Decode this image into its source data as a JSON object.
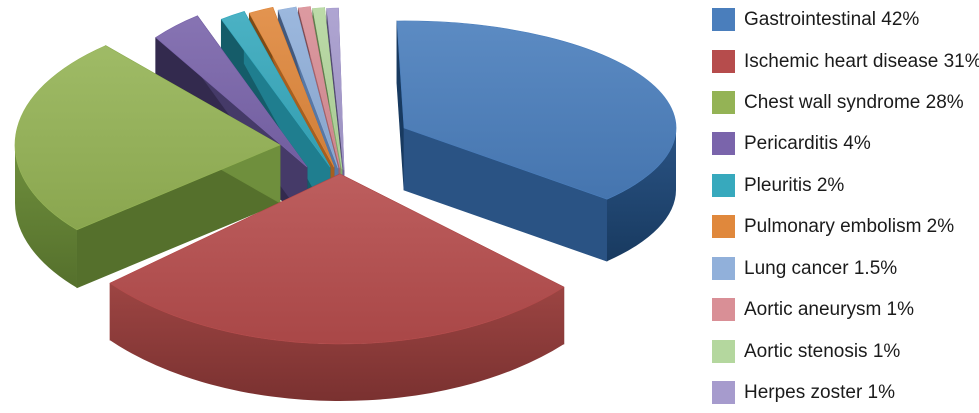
{
  "chart_data": {
    "type": "pie",
    "style": "3d-exploded",
    "title": "",
    "unit": "%",
    "legend_position": "right",
    "background": "#ffffff",
    "legend_text_color": "#1b1b1b",
    "slices": [
      {
        "label": "Gastrointestinal",
        "value": 42,
        "legend": "Gastrointestinal 42%",
        "color": "#4a7ebc",
        "wall": "#2a5384",
        "wall_dark": "#183a60"
      },
      {
        "label": "Ischemic heart disease",
        "value": 31,
        "legend": "Ischemic heart disease 31%",
        "color": "#b64c4c",
        "wall": "#9d4543",
        "wall_dark": "#7a3130"
      },
      {
        "label": "Chest wall syndrome",
        "value": 28,
        "legend": "Chest wall syndrome 28%",
        "color": "#94b355",
        "wall": "#6f8f3d",
        "wall_dark": "#55702c"
      },
      {
        "label": "Pericarditis",
        "value": 4,
        "legend": "Pericarditis 4%",
        "color": "#7a64ab",
        "wall": "#453a68",
        "wall_dark": "#332a4e"
      },
      {
        "label": "Pleuritis",
        "value": 2,
        "legend": "Pleuritis 2%",
        "color": "#37a9bd",
        "wall": "#1f7e8f",
        "wall_dark": "#155c69"
      },
      {
        "label": "Pulmonary embolism",
        "value": 2,
        "legend": "Pulmonary embolism 2%",
        "color": "#e0883c",
        "wall": "#a65f20",
        "wall_dark": "#7d4a16"
      },
      {
        "label": "Lung cancer",
        "value": 1.5,
        "legend": "Lung cancer 1.5%",
        "color": "#91b0da",
        "wall": "#5878a5",
        "wall_dark": "#43597c"
      },
      {
        "label": "Aortic aneurysm",
        "value": 1,
        "legend": "Aortic aneurysm 1%",
        "color": "#d98f96",
        "wall": "#a2636b",
        "wall_dark": "#7d4c52"
      },
      {
        "label": "Aortic stenosis",
        "value": 1,
        "legend": "Aortic stenosis 1%",
        "color": "#b4d79e",
        "wall": "#82a86b",
        "wall_dark": "#5f7c4e"
      },
      {
        "label": "Herpes zoster",
        "value": 1,
        "legend": "Herpes zoster 1%",
        "color": "#a69bcd",
        "wall": "#6f6396",
        "wall_dark": "#524a70"
      }
    ]
  }
}
